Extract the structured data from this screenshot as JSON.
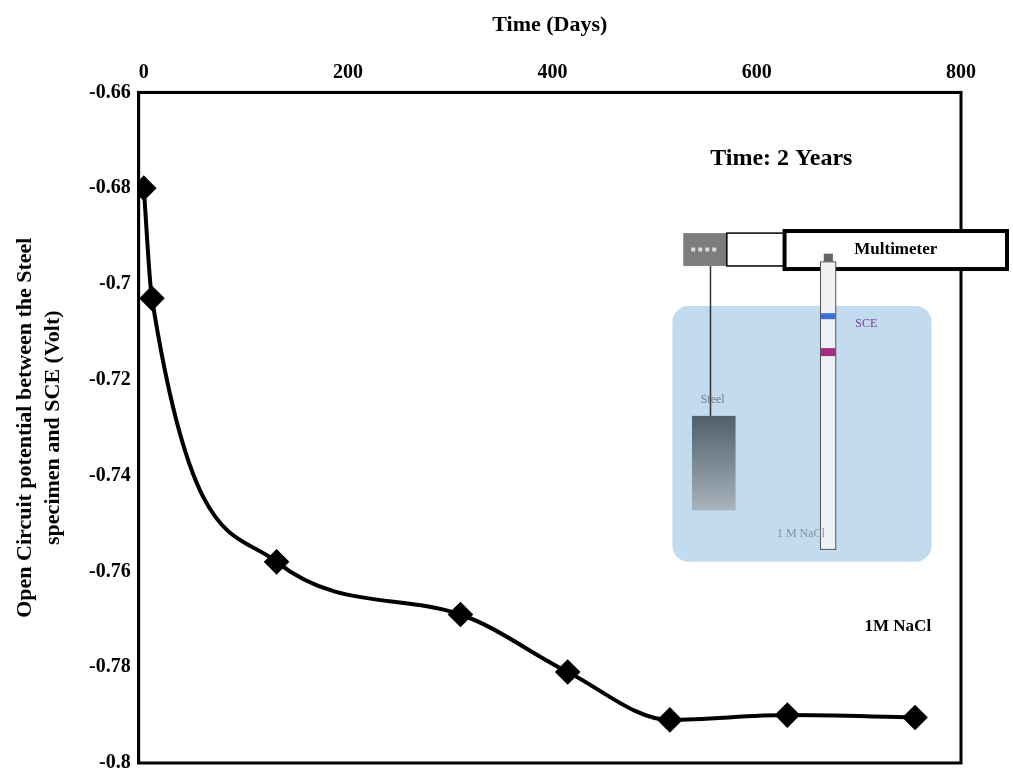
{
  "chart_data": {
    "type": "line",
    "x_label": "Time (Days)",
    "y_label": "Open Circuit potential between the Steel specimen and SCE (Volt)",
    "x": [
      0,
      8,
      130,
      310,
      415,
      515,
      630,
      755
    ],
    "series": [
      {
        "name": "Open Circuit potential",
        "color": "#000000",
        "marker": "diamond",
        "line_style": "solid",
        "values": [
          -0.68,
          -0.703,
          -0.758,
          -0.769,
          -0.781,
          -0.791,
          -0.79,
          -0.7905
        ]
      }
    ],
    "xlim": [
      -5,
      800
    ],
    "xticks": [
      0,
      200,
      400,
      600,
      800
    ],
    "ylim": [
      -0.8,
      -0.66
    ],
    "yticks": [
      -0.8,
      -0.78,
      -0.76,
      -0.74,
      -0.72,
      -0.7,
      -0.68,
      -0.66
    ],
    "grid": false,
    "annotations": [
      "Time: 2 Years",
      "1M NaCl"
    ],
    "inset_labels": {
      "meter": "Multimeter",
      "metal": "Steel",
      "electrode": "SCE",
      "solution": "1 M NaCl"
    }
  }
}
